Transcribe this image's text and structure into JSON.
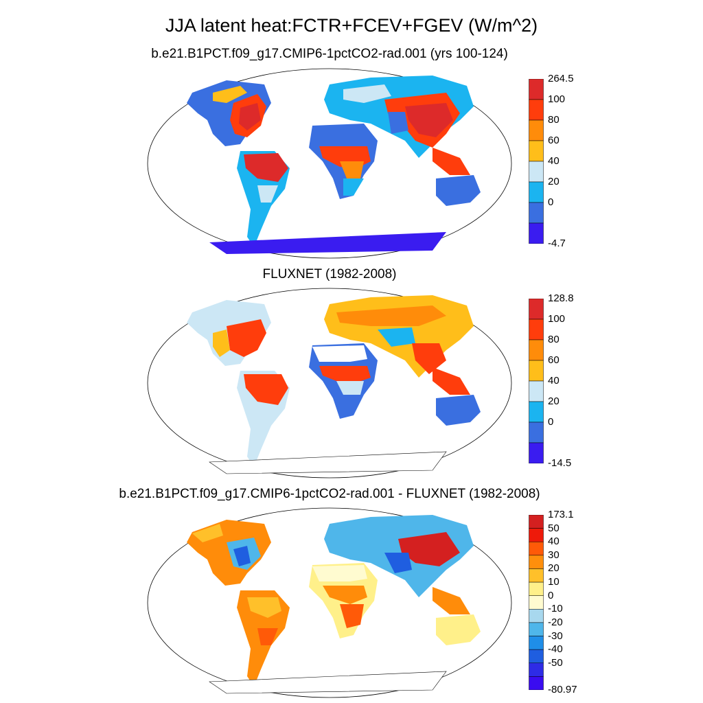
{
  "title": "JJA latent heat:FCTR+FCEV+FGEV (W/m^2)",
  "panels": [
    {
      "title": "b.e21.B1PCT.f09_g17.CMIP6-1pctCO2-rad.001 (yrs 100-124)",
      "colorbar": {
        "labels": [
          "264.5",
          "100",
          "80",
          "60",
          "40",
          "20",
          "0",
          "-4.7"
        ],
        "colors": [
          "#dd2a2a",
          "#ff3d0c",
          "#ff8c0a",
          "#ffbe1a",
          "#cce7f5",
          "#1bb4f0",
          "#3a6fe0",
          "#3a1cf0"
        ]
      }
    },
    {
      "title": "FLUXNET (1982-2008)",
      "colorbar": {
        "labels": [
          "128.8",
          "100",
          "80",
          "60",
          "40",
          "20",
          "0",
          "-14.5"
        ],
        "colors": [
          "#dd2a2a",
          "#ff3d0c",
          "#ff8c0a",
          "#ffbe1a",
          "#cce7f5",
          "#1bb4f0",
          "#3a6fe0",
          "#3a1cf0"
        ]
      }
    },
    {
      "title": "b.e21.B1PCT.f09_g17.CMIP6-1pctCO2-rad.001 - FLUXNET (1982-2008)",
      "colorbar": {
        "labels": [
          "173.1",
          "50",
          "40",
          "30",
          "20",
          "10",
          "0",
          "-10",
          "-20",
          "-30",
          "-40",
          "-50",
          "-80.97"
        ],
        "colors": [
          "#d42020",
          "#ee1a0a",
          "#ff5a08",
          "#ff8f0c",
          "#ffc02a",
          "#fff08a",
          "#fffbd0",
          "#a8d8ee",
          "#4fb6ea",
          "#1f8ee8",
          "#1f5ee0",
          "#2e2ce6",
          "#3a0cf0"
        ]
      }
    }
  ]
}
